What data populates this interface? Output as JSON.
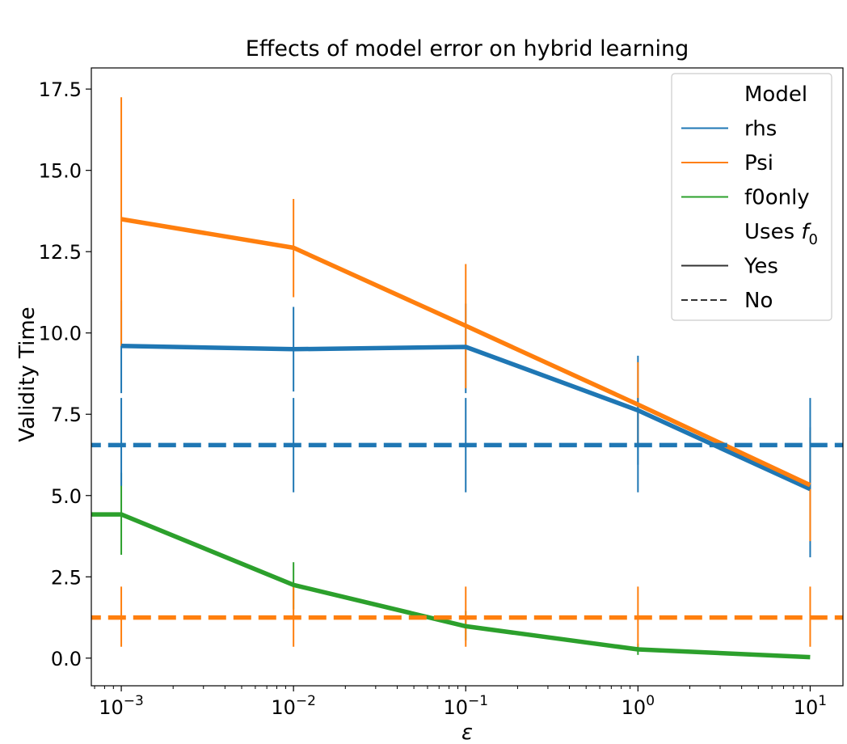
{
  "chart_data": {
    "type": "line",
    "title": "Effects of model error on hybrid learning",
    "xlabel": "ε",
    "ylabel": "Validity Time",
    "xscale": "log",
    "xlim": [
      0.00067,
      15.5
    ],
    "ylim": [
      -0.85,
      18.15
    ],
    "x": [
      0.001,
      0.01,
      0.1,
      1,
      10
    ],
    "x_tick_labels": [
      {
        "value": 0.001,
        "base": "10",
        "exp": "−3"
      },
      {
        "value": 0.01,
        "base": "10",
        "exp": "−2"
      },
      {
        "value": 0.1,
        "base": "10",
        "exp": "−1"
      },
      {
        "value": 1,
        "base": "10",
        "exp": "0"
      },
      {
        "value": 10,
        "base": "10",
        "exp": "1"
      }
    ],
    "y_ticks": [
      0.0,
      2.5,
      5.0,
      7.5,
      10.0,
      12.5,
      15.0,
      17.5
    ],
    "y_tick_labels": [
      "0.0",
      "2.5",
      "5.0",
      "7.5",
      "10.0",
      "12.5",
      "15.0",
      "17.5"
    ],
    "series": [
      {
        "name": "rhs",
        "color": "#1f77b4",
        "style": "solid",
        "x": [
          0.001,
          0.01,
          0.1,
          1,
          10
        ],
        "values": [
          9.6,
          9.5,
          9.57,
          7.62,
          5.2
        ],
        "err_low": [
          8.15,
          8.2,
          8.15,
          5.95,
          3.1
        ],
        "err_high": [
          11.0,
          10.8,
          10.9,
          9.3,
          7.1
        ]
      },
      {
        "name": "Psi",
        "color": "#ff7f0e",
        "style": "solid",
        "x": [
          0.001,
          0.01,
          0.1,
          1,
          10
        ],
        "values": [
          13.5,
          12.62,
          10.22,
          7.8,
          5.32
        ],
        "err_low": [
          9.6,
          11.1,
          8.3,
          6.6,
          3.6
        ],
        "err_high": [
          17.25,
          14.12,
          12.12,
          9.1,
          7.0
        ]
      },
      {
        "name": "f0only",
        "color": "#2ca02c",
        "style": "solid",
        "x": [
          0.0006,
          0.001,
          0.01,
          0.1,
          1,
          10
        ],
        "values": [
          4.42,
          4.42,
          2.25,
          0.98,
          0.27,
          0.03
        ],
        "err_low": [
          null,
          3.18,
          1.5,
          0.55,
          0.1,
          null
        ],
        "err_high": [
          null,
          5.7,
          2.95,
          1.45,
          0.45,
          null
        ]
      },
      {
        "name": "rhs (no f0)",
        "color": "#1f77b4",
        "style": "dashed",
        "x": [
          0.0006,
          15.5
        ],
        "values": [
          6.55,
          6.55
        ],
        "err_x": [
          0.001,
          0.01,
          0.1,
          1,
          10
        ],
        "err_low": [
          5.3,
          5.1,
          5.1,
          5.1,
          5.2
        ],
        "err_high": [
          8.0,
          8.0,
          8.0,
          8.0,
          8.0
        ]
      },
      {
        "name": "Psi (no f0)",
        "color": "#ff7f0e",
        "style": "dashed",
        "x": [
          0.0006,
          15.5
        ],
        "values": [
          1.25,
          1.25
        ],
        "err_x": [
          0.001,
          0.01,
          0.1,
          1,
          10
        ],
        "err_low": [
          0.35,
          0.35,
          0.35,
          0.35,
          0.35
        ],
        "err_high": [
          2.2,
          2.2,
          2.2,
          2.2,
          2.2
        ]
      }
    ],
    "legend": {
      "placement": "top-right",
      "items": [
        {
          "kind": "header",
          "label": "Model"
        },
        {
          "kind": "line",
          "label": "rhs",
          "color": "#1f77b4",
          "style": "solid"
        },
        {
          "kind": "line",
          "label": "Psi",
          "color": "#ff7f0e",
          "style": "solid"
        },
        {
          "kind": "line",
          "label": "f0only",
          "color": "#2ca02c",
          "style": "solid"
        },
        {
          "kind": "header",
          "label": "Uses ",
          "math": "f",
          "sub": "0"
        },
        {
          "kind": "line",
          "label": "Yes",
          "color": "#333333",
          "style": "solid"
        },
        {
          "kind": "line",
          "label": "No",
          "color": "#333333",
          "style": "dashed"
        }
      ]
    }
  }
}
